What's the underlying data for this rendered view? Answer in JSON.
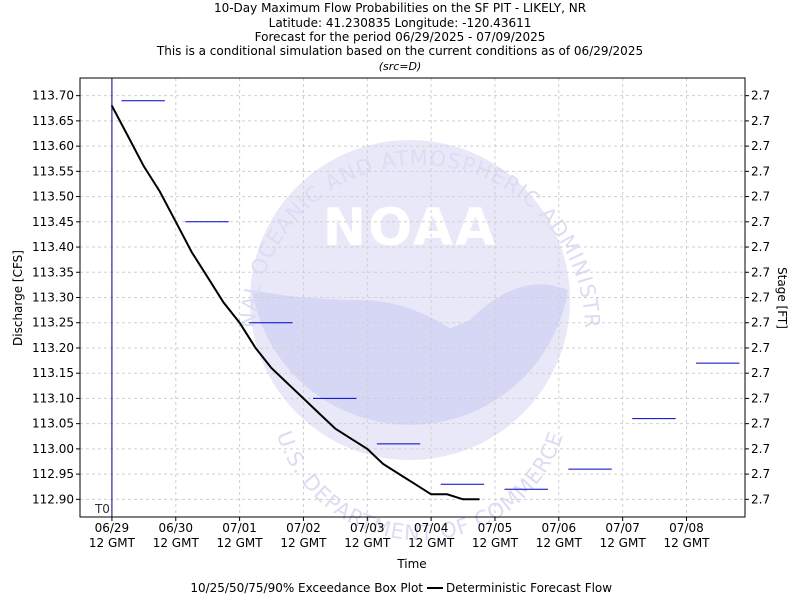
{
  "chart_data": {
    "type": "line",
    "title_lines": [
      "10-Day Maximum Flow Probabilities on the SF PIT - LIKELY, NR",
      "Latitude: 41.230835 Longitude: -120.43611",
      "Forecast for the period 06/29/2025 - 07/09/2025",
      "This is a conditional simulation based on the current conditions as of 06/29/2025"
    ],
    "source_note": "(src=D)",
    "xlabel": "Time",
    "ylabel": "Discharge [CFS]",
    "y2label": "Stage [FT]",
    "x_start": "2025-06-29 00:00",
    "x_ticks": [
      {
        "line1": "06/29",
        "line2": "12 GMT",
        "date": "2025-06-29 12:00"
      },
      {
        "line1": "06/30",
        "line2": "12 GMT",
        "date": "2025-06-30 12:00"
      },
      {
        "line1": "07/01",
        "line2": "12 GMT",
        "date": "2025-07-01 12:00"
      },
      {
        "line1": "07/02",
        "line2": "12 GMT",
        "date": "2025-07-02 12:00"
      },
      {
        "line1": "07/03",
        "line2": "12 GMT",
        "date": "2025-07-03 12:00"
      },
      {
        "line1": "07/04",
        "line2": "12 GMT",
        "date": "2025-07-04 12:00"
      },
      {
        "line1": "07/05",
        "line2": "12 GMT",
        "date": "2025-07-05 12:00"
      },
      {
        "line1": "07/06",
        "line2": "12 GMT",
        "date": "2025-07-06 12:00"
      },
      {
        "line1": "07/07",
        "line2": "12 GMT",
        "date": "2025-07-07 12:00"
      },
      {
        "line1": "07/08",
        "line2": "12 GMT",
        "date": "2025-07-08 12:00"
      }
    ],
    "x_end": "2025-07-09 10:00",
    "ylim": [
      112.865,
      113.735
    ],
    "y_ticks": [
      "113.70",
      "113.65",
      "113.60",
      "113.55",
      "113.50",
      "113.45",
      "113.40",
      "113.35",
      "113.30",
      "113.25",
      "113.20",
      "113.15",
      "113.10",
      "113.05",
      "113.00",
      "112.95",
      "112.90"
    ],
    "y2_ticks": [
      "2.7",
      "2.7",
      "2.7",
      "2.7",
      "2.7",
      "2.7",
      "2.7",
      "2.7",
      "2.7",
      "2.7",
      "2.7",
      "2.7",
      "2.7",
      "2.7",
      "2.7",
      "2.7",
      "2.7"
    ],
    "grid": true,
    "t0_label": "T0",
    "t0_time": "2025-06-29 12:00",
    "box_plot_levels": [
      {
        "start": "2025-06-29 12:00",
        "end": "2025-06-30 12:00",
        "value": 113.69
      },
      {
        "start": "2025-06-30 12:00",
        "end": "2025-07-01 12:00",
        "value": 113.45
      },
      {
        "start": "2025-07-01 12:00",
        "end": "2025-07-02 12:00",
        "value": 113.25
      },
      {
        "start": "2025-07-02 12:00",
        "end": "2025-07-03 12:00",
        "value": 113.1
      },
      {
        "start": "2025-07-03 12:00",
        "end": "2025-07-04 12:00",
        "value": 113.01
      },
      {
        "start": "2025-07-04 12:00",
        "end": "2025-07-05 12:00",
        "value": 112.93
      },
      {
        "start": "2025-07-05 12:00",
        "end": "2025-07-06 12:00",
        "value": 112.92
      },
      {
        "start": "2025-07-06 12:00",
        "end": "2025-07-07 12:00",
        "value": 112.96
      },
      {
        "start": "2025-07-07 12:00",
        "end": "2025-07-08 12:00",
        "value": 113.06
      },
      {
        "start": "2025-07-08 12:00",
        "end": "2025-07-09 12:00",
        "value": 113.17
      }
    ],
    "forecast_flow": [
      {
        "t": "2025-06-29 12:00",
        "y": 113.68
      },
      {
        "t": "2025-06-29 18:00",
        "y": 113.62
      },
      {
        "t": "2025-06-30 00:00",
        "y": 113.56
      },
      {
        "t": "2025-06-30 06:00",
        "y": 113.51
      },
      {
        "t": "2025-06-30 12:00",
        "y": 113.45
      },
      {
        "t": "2025-06-30 18:00",
        "y": 113.39
      },
      {
        "t": "2025-07-01 00:00",
        "y": 113.34
      },
      {
        "t": "2025-07-01 06:00",
        "y": 113.29
      },
      {
        "t": "2025-07-01 12:00",
        "y": 113.25
      },
      {
        "t": "2025-07-01 18:00",
        "y": 113.2
      },
      {
        "t": "2025-07-02 00:00",
        "y": 113.16
      },
      {
        "t": "2025-07-02 06:00",
        "y": 113.13
      },
      {
        "t": "2025-07-02 12:00",
        "y": 113.1
      },
      {
        "t": "2025-07-02 18:00",
        "y": 113.07
      },
      {
        "t": "2025-07-03 00:00",
        "y": 113.04
      },
      {
        "t": "2025-07-03 06:00",
        "y": 113.02
      },
      {
        "t": "2025-07-03 12:00",
        "y": 113.0
      },
      {
        "t": "2025-07-03 18:00",
        "y": 112.97
      },
      {
        "t": "2025-07-04 00:00",
        "y": 112.95
      },
      {
        "t": "2025-07-04 06:00",
        "y": 112.93
      },
      {
        "t": "2025-07-04 12:00",
        "y": 112.91
      },
      {
        "t": "2025-07-04 18:00",
        "y": 112.91
      },
      {
        "t": "2025-07-05 00:00",
        "y": 112.9
      },
      {
        "t": "2025-07-05 06:00",
        "y": 112.9
      }
    ],
    "legend": [
      {
        "label": "10/25/50/75/90% Exceedance Box Plot",
        "symbol": "none"
      },
      {
        "label": "Deterministic Forecast Flow",
        "symbol": "line",
        "color": "#000000"
      }
    ],
    "colors": {
      "box_plot": "#0000cc",
      "forecast": "#000000",
      "grid": "#d0d0d0",
      "t0_line": "#000080"
    },
    "watermark": {
      "ring_text_top": "NATIONAL OCEANIC AND ATMOSPHERIC ADMINISTRATION",
      "ring_text_bottom": "U.S. DEPARTMENT OF COMMERCE",
      "center_text": "NOAA"
    }
  }
}
